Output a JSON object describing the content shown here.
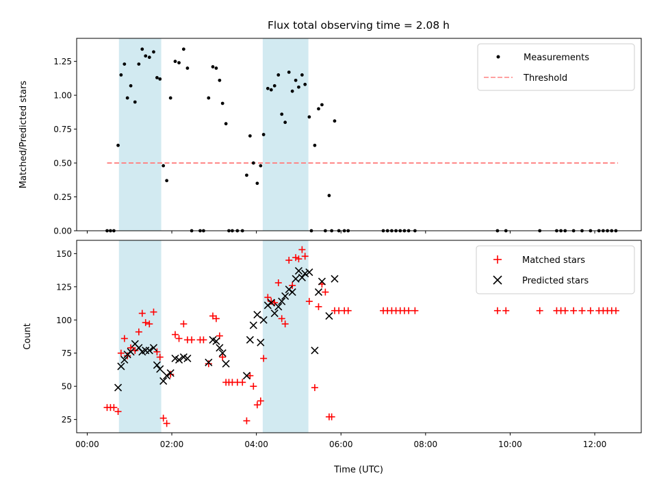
{
  "chart_data": [
    {
      "type": "scatter",
      "title": "Flux total observing time = 2.08 h",
      "xlabel": "",
      "ylabel": "Matched/Predicted stars",
      "ylim": [
        0,
        1.42
      ],
      "xlim": [
        -0.25,
        13.1
      ],
      "x_unit": "hours (UTC)",
      "yticks": [
        "0.00",
        "0.25",
        "0.50",
        "0.75",
        "1.00",
        "1.25"
      ],
      "ytick_values": [
        0,
        0.25,
        0.5,
        0.75,
        1.0,
        1.25
      ],
      "grid": false,
      "legend_position": "top-right",
      "shaded_intervals": [
        [
          0.75,
          1.75
        ],
        [
          4.15,
          5.23
        ]
      ],
      "shade_color": "#add8e6",
      "series": [
        {
          "name": "Measurements",
          "marker": "dot",
          "color": "#000000",
          "points": [
            [
              0.47,
              0
            ],
            [
              0.55,
              0
            ],
            [
              0.63,
              0
            ],
            [
              0.73,
              0.63
            ],
            [
              0.8,
              1.15
            ],
            [
              0.88,
              1.23
            ],
            [
              0.95,
              0.98
            ],
            [
              1.03,
              1.07
            ],
            [
              1.13,
              0.95
            ],
            [
              1.22,
              1.23
            ],
            [
              1.3,
              1.34
            ],
            [
              1.38,
              1.29
            ],
            [
              1.47,
              1.28
            ],
            [
              1.57,
              1.32
            ],
            [
              1.65,
              1.13
            ],
            [
              1.72,
              1.12
            ],
            [
              1.8,
              0.48
            ],
            [
              1.88,
              0.37
            ],
            [
              1.97,
              0.98
            ],
            [
              2.08,
              1.25
            ],
            [
              2.17,
              1.24
            ],
            [
              2.28,
              1.34
            ],
            [
              2.37,
              1.2
            ],
            [
              2.47,
              0
            ],
            [
              2.67,
              0
            ],
            [
              2.75,
              0
            ],
            [
              2.87,
              0.98
            ],
            [
              2.97,
              1.21
            ],
            [
              3.05,
              1.2
            ],
            [
              3.13,
              1.11
            ],
            [
              3.2,
              0.94
            ],
            [
              3.28,
              0.79
            ],
            [
              3.35,
              0
            ],
            [
              3.43,
              0
            ],
            [
              3.55,
              0
            ],
            [
              3.67,
              0
            ],
            [
              3.77,
              0.41
            ],
            [
              3.85,
              0.7
            ],
            [
              3.93,
              0.5
            ],
            [
              4.02,
              0.35
            ],
            [
              4.1,
              0.48
            ],
            [
              4.17,
              0.71
            ],
            [
              4.27,
              1.05
            ],
            [
              4.35,
              1.04
            ],
            [
              4.43,
              1.07
            ],
            [
              4.52,
              1.15
            ],
            [
              4.6,
              0.86
            ],
            [
              4.68,
              0.8
            ],
            [
              4.77,
              1.17
            ],
            [
              4.85,
              1.03
            ],
            [
              4.93,
              1.11
            ],
            [
              5.0,
              1.06
            ],
            [
              5.08,
              1.15
            ],
            [
              5.15,
              1.08
            ],
            [
              5.25,
              0.84
            ],
            [
              5.3,
              0
            ],
            [
              5.38,
              0.63
            ],
            [
              5.47,
              0.9
            ],
            [
              5.55,
              0.93
            ],
            [
              5.63,
              0
            ],
            [
              5.72,
              0.26
            ],
            [
              5.78,
              0
            ],
            [
              5.85,
              0.81
            ],
            [
              5.95,
              0
            ],
            [
              6.08,
              0
            ],
            [
              6.17,
              0
            ],
            [
              7.0,
              0
            ],
            [
              7.1,
              0
            ],
            [
              7.2,
              0
            ],
            [
              7.3,
              0
            ],
            [
              7.4,
              0
            ],
            [
              7.5,
              0
            ],
            [
              7.6,
              0
            ],
            [
              7.75,
              0
            ],
            [
              9.7,
              0
            ],
            [
              9.9,
              0
            ],
            [
              10.7,
              0
            ],
            [
              11.1,
              0
            ],
            [
              11.2,
              0
            ],
            [
              11.3,
              0
            ],
            [
              11.5,
              0
            ],
            [
              11.7,
              0
            ],
            [
              11.9,
              0
            ],
            [
              12.1,
              0
            ],
            [
              12.2,
              0
            ],
            [
              12.3,
              0
            ],
            [
              12.4,
              0
            ],
            [
              12.5,
              0
            ]
          ]
        },
        {
          "name": "Threshold",
          "line_style": "dashed",
          "color": "#ff8080",
          "points": [
            [
              0.47,
              0.5
            ],
            [
              12.55,
              0.5
            ]
          ]
        }
      ]
    },
    {
      "type": "scatter",
      "title": "",
      "xlabel": "Time (UTC)",
      "ylabel": "Count",
      "ylim": [
        15,
        160
      ],
      "xlim": [
        -0.25,
        13.1
      ],
      "x_unit": "hours (UTC)",
      "yticks": [
        "25",
        "50",
        "75",
        "100",
        "125",
        "150"
      ],
      "ytick_values": [
        25,
        50,
        75,
        100,
        125,
        150
      ],
      "xticks": [
        "00:00",
        "02:00",
        "04:00",
        "06:00",
        "08:00",
        "10:00",
        "12:00"
      ],
      "xtick_values": [
        0,
        2,
        4,
        6,
        8,
        10,
        12
      ],
      "grid": false,
      "legend_position": "top-right",
      "shaded_intervals": [
        [
          0.75,
          1.75
        ],
        [
          4.15,
          5.23
        ]
      ],
      "shade_color": "#add8e6",
      "series": [
        {
          "name": "Matched stars",
          "marker": "plus",
          "color": "#ff0000",
          "points": [
            [
              0.47,
              34
            ],
            [
              0.55,
              34
            ],
            [
              0.63,
              34
            ],
            [
              0.73,
              31
            ],
            [
              0.8,
              75
            ],
            [
              0.88,
              86
            ],
            [
              0.95,
              73
            ],
            [
              1.03,
              79
            ],
            [
              1.13,
              77
            ],
            [
              1.22,
              91
            ],
            [
              1.3,
              105
            ],
            [
              1.38,
              98
            ],
            [
              1.47,
              97
            ],
            [
              1.57,
              106
            ],
            [
              1.65,
              76
            ],
            [
              1.72,
              72
            ],
            [
              1.8,
              26
            ],
            [
              1.88,
              22
            ],
            [
              1.97,
              59
            ],
            [
              2.08,
              89
            ],
            [
              2.17,
              86
            ],
            [
              2.28,
              97
            ],
            [
              2.37,
              85
            ],
            [
              2.47,
              85
            ],
            [
              2.67,
              85
            ],
            [
              2.75,
              85
            ],
            [
              2.87,
              67
            ],
            [
              2.97,
              103
            ],
            [
              3.05,
              101
            ],
            [
              3.13,
              88
            ],
            [
              3.2,
              72
            ],
            [
              3.28,
              53
            ],
            [
              3.35,
              53
            ],
            [
              3.43,
              53
            ],
            [
              3.55,
              53
            ],
            [
              3.67,
              53
            ],
            [
              3.77,
              24
            ],
            [
              3.85,
              58
            ],
            [
              3.93,
              50
            ],
            [
              4.02,
              36
            ],
            [
              4.1,
              39
            ],
            [
              4.17,
              71
            ],
            [
              4.27,
              117
            ],
            [
              4.35,
              114
            ],
            [
              4.43,
              113
            ],
            [
              4.52,
              128
            ],
            [
              4.6,
              101
            ],
            [
              4.68,
              97
            ],
            [
              4.77,
              145
            ],
            [
              4.85,
              126
            ],
            [
              4.93,
              147
            ],
            [
              5.0,
              146
            ],
            [
              5.08,
              153
            ],
            [
              5.15,
              148
            ],
            [
              5.25,
              114
            ],
            [
              5.38,
              49
            ],
            [
              5.47,
              110
            ],
            [
              5.55,
              127
            ],
            [
              5.63,
              121
            ],
            [
              5.72,
              27
            ],
            [
              5.78,
              27
            ],
            [
              5.85,
              107
            ],
            [
              5.95,
              107
            ],
            [
              6.08,
              107
            ],
            [
              6.17,
              107
            ],
            [
              7.0,
              107
            ],
            [
              7.1,
              107
            ],
            [
              7.2,
              107
            ],
            [
              7.3,
              107
            ],
            [
              7.4,
              107
            ],
            [
              7.5,
              107
            ],
            [
              7.6,
              107
            ],
            [
              7.75,
              107
            ],
            [
              9.7,
              107
            ],
            [
              9.9,
              107
            ],
            [
              10.7,
              107
            ],
            [
              11.1,
              107
            ],
            [
              11.2,
              107
            ],
            [
              11.3,
              107
            ],
            [
              11.5,
              107
            ],
            [
              11.7,
              107
            ],
            [
              11.9,
              107
            ],
            [
              12.1,
              107
            ],
            [
              12.2,
              107
            ],
            [
              12.3,
              107
            ],
            [
              12.4,
              107
            ],
            [
              12.5,
              107
            ]
          ]
        },
        {
          "name": "Predicted stars",
          "marker": "x",
          "color": "#000000",
          "points": [
            [
              0.73,
              49
            ],
            [
              0.8,
              65
            ],
            [
              0.88,
              70
            ],
            [
              0.95,
              74
            ],
            [
              1.03,
              76
            ],
            [
              1.13,
              82
            ],
            [
              1.22,
              79
            ],
            [
              1.3,
              76
            ],
            [
              1.38,
              77
            ],
            [
              1.47,
              77
            ],
            [
              1.57,
              79
            ],
            [
              1.65,
              66
            ],
            [
              1.72,
              63
            ],
            [
              1.8,
              54
            ],
            [
              1.88,
              58
            ],
            [
              1.97,
              60
            ],
            [
              2.08,
              71
            ],
            [
              2.17,
              70
            ],
            [
              2.28,
              72
            ],
            [
              2.37,
              71
            ],
            [
              2.87,
              68
            ],
            [
              2.97,
              85
            ],
            [
              3.05,
              84
            ],
            [
              3.13,
              79
            ],
            [
              3.2,
              75
            ],
            [
              3.28,
              67
            ],
            [
              3.77,
              58
            ],
            [
              3.85,
              85
            ],
            [
              3.93,
              96
            ],
            [
              4.02,
              104
            ],
            [
              4.1,
              83
            ],
            [
              4.17,
              100
            ],
            [
              4.27,
              111
            ],
            [
              4.35,
              113
            ],
            [
              4.43,
              105
            ],
            [
              4.52,
              110
            ],
            [
              4.6,
              114
            ],
            [
              4.68,
              118
            ],
            [
              4.77,
              123
            ],
            [
              4.85,
              121
            ],
            [
              4.93,
              131
            ],
            [
              5.0,
              137
            ],
            [
              5.08,
              132
            ],
            [
              5.15,
              135
            ],
            [
              5.25,
              136
            ],
            [
              5.38,
              77
            ],
            [
              5.47,
              121
            ],
            [
              5.55,
              129
            ],
            [
              5.72,
              103
            ],
            [
              5.85,
              131
            ]
          ]
        }
      ]
    }
  ]
}
